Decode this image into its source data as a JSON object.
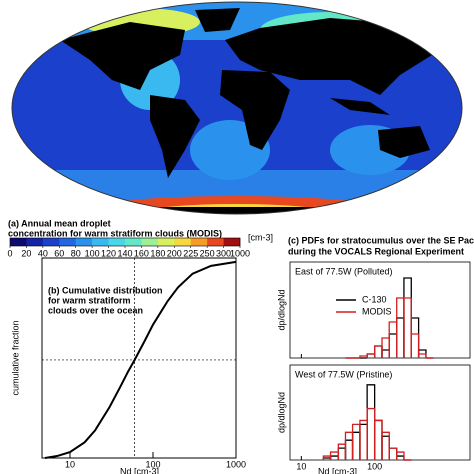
{
  "chart_data": [
    {
      "type": "map",
      "title_lines": [
        "(a) Annual mean droplet",
        "concentration for warm stratiform clouds (MODIS)"
      ],
      "colorbar_ticks": [
        0,
        20,
        40,
        60,
        80,
        100,
        120,
        140,
        160,
        180,
        200,
        225,
        250,
        300,
        1000
      ],
      "colorbar_colors": [
        "#0b0b70",
        "#1422a4",
        "#1a40cc",
        "#2268e0",
        "#2a92ec",
        "#3ab8f0",
        "#4ad8e8",
        "#62e8c6",
        "#9ef096",
        "#d8f060",
        "#f8d840",
        "#f89a28",
        "#e84820",
        "#a01010"
      ],
      "colorbar_unit": "[cm-3]"
    },
    {
      "type": "line",
      "title_lines": [
        "(b) Cumulative distribution",
        "for warm stratiform",
        "clouds over the ocean"
      ],
      "ylabel": "cumulative fraction",
      "xlabel": "Nd [cm-3]",
      "x": [
        5,
        7,
        10,
        15,
        20,
        30,
        40,
        50,
        60,
        80,
        100,
        150,
        200,
        300,
        500,
        1000
      ],
      "values": [
        0.0,
        0.01,
        0.03,
        0.08,
        0.14,
        0.26,
        0.36,
        0.44,
        0.5,
        0.6,
        0.68,
        0.8,
        0.87,
        0.94,
        0.98,
        1.0
      ],
      "color": "#000000",
      "xlim": [
        4.6,
        1000
      ],
      "ylim": [
        0,
        1.02
      ],
      "xticks": [
        10,
        100,
        1000
      ],
      "log_x": true,
      "hlines": [
        0.5
      ],
      "vlines": [
        60
      ]
    },
    {
      "type": "histogram",
      "title_lines": [
        "(c) PDFs for stratocumulus over the SE Pacific",
        "during the VOCALS Regional Experiment"
      ],
      "xlabel": "Nd [cm-3]",
      "ylabel": "dp/dlogNd",
      "xlim": [
        7,
        2000
      ],
      "xticks": [
        10,
        100
      ],
      "log_x": true,
      "panels": [
        {
          "label": "East of 77.5W (Polluted)",
          "ylim": [
            0,
            2.4
          ],
          "bins": [
            40,
            50,
            63,
            79,
            100,
            126,
            158,
            200,
            251,
            316,
            398,
            501,
            631
          ],
          "series": [
            {
              "name": "C-130",
              "color": "#000000",
              "values": [
                0,
                0,
                0,
                0.1,
                0.3,
                0.2,
                0.6,
                1.0,
                2.0,
                1.0,
                0.2,
                0
              ]
            },
            {
              "name": "MODIS",
              "color": "#d02020",
              "values": [
                0,
                0,
                0.05,
                0.1,
                0.3,
                0.5,
                0.9,
                1.5,
                1.5,
                0.6,
                0.1,
                0
              ]
            }
          ]
        },
        {
          "label": "West of 77.5W (Pristine)",
          "ylim": [
            0,
            2.4
          ],
          "bins": [
            20,
            25,
            32,
            40,
            50,
            63,
            79,
            100,
            126,
            158,
            200,
            251,
            316
          ],
          "series": [
            {
              "name": "C-130",
              "color": "#000000",
              "values": [
                0.05,
                0.1,
                0.3,
                0.5,
                0.7,
                0.9,
                1.9,
                1.0,
                0.6,
                0.3,
                0.1,
                0
              ]
            },
            {
              "name": "MODIS",
              "color": "#d02020",
              "values": [
                0.1,
                0.2,
                0.4,
                0.7,
                0.9,
                1.0,
                1.3,
                1.0,
                0.7,
                0.3,
                0.2,
                0
              ]
            }
          ]
        }
      ]
    }
  ]
}
